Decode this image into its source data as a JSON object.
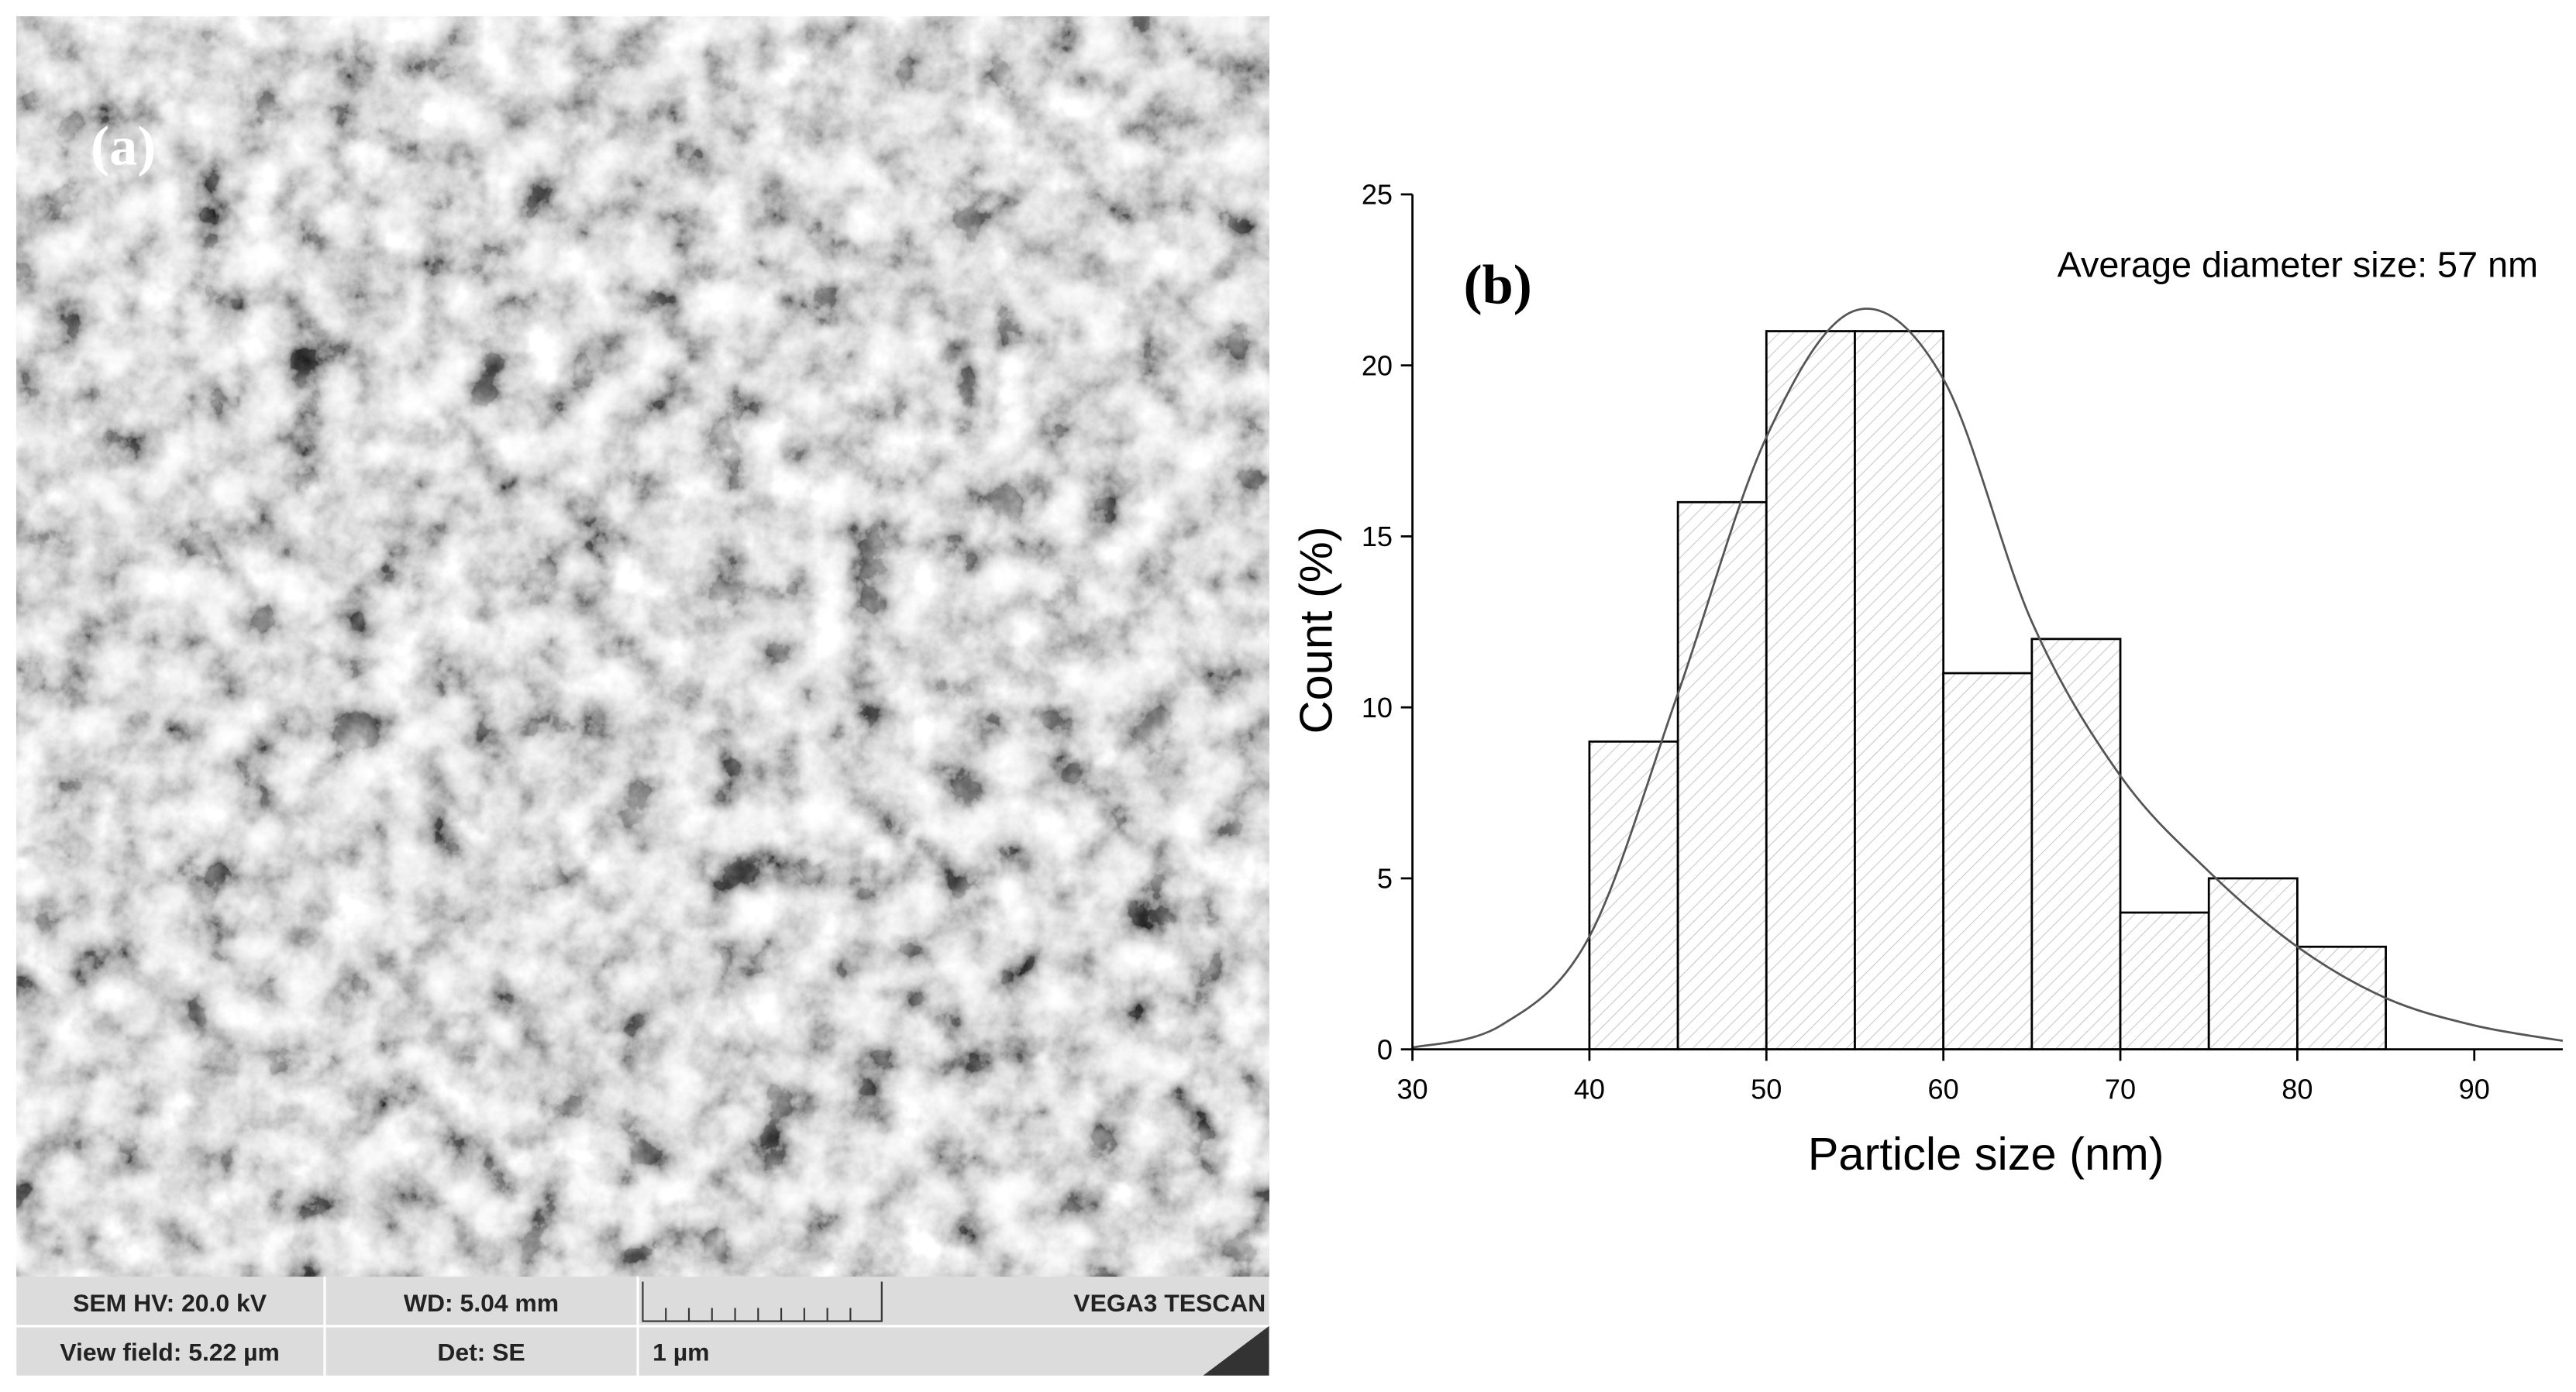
{
  "sem_panel": {
    "label": "(a)",
    "info_bar": {
      "row1": [
        "SEM HV: 20.0 kV",
        "WD: 5.04 mm",
        "VEGA3 TESCAN"
      ],
      "row2": [
        "View field: 5.22 µm",
        "Det: SE",
        "1 µm"
      ]
    }
  },
  "chart_data": {
    "type": "histogram",
    "panel_label": "(b)",
    "annotation": "Average diameter size: 57 nm",
    "xlabel": "Particle size (nm)",
    "ylabel": "Count (%)",
    "bins": [
      40,
      45,
      50,
      55,
      60,
      65,
      70,
      75,
      80,
      85
    ],
    "values": [
      9,
      16,
      21,
      21,
      11,
      12,
      4,
      5,
      3
    ],
    "color": "#d9d9d9",
    "fit": {
      "x": [
        30,
        35,
        40,
        45,
        50,
        55,
        60,
        65,
        70,
        75,
        80,
        85,
        90,
        95
      ],
      "values": [
        0.05,
        0.7,
        3.3,
        10.4,
        17.9,
        21.6,
        19.6,
        12.5,
        8.0,
        5.2,
        3.0,
        1.5,
        0.7,
        0.25
      ],
      "color": "#555555"
    },
    "xlim": [
      30,
      95
    ],
    "xticks": [
      30,
      40,
      50,
      60,
      70,
      80,
      90
    ],
    "ylim": [
      0,
      25
    ],
    "yticks": [
      0,
      5,
      10,
      15,
      20,
      25
    ]
  }
}
